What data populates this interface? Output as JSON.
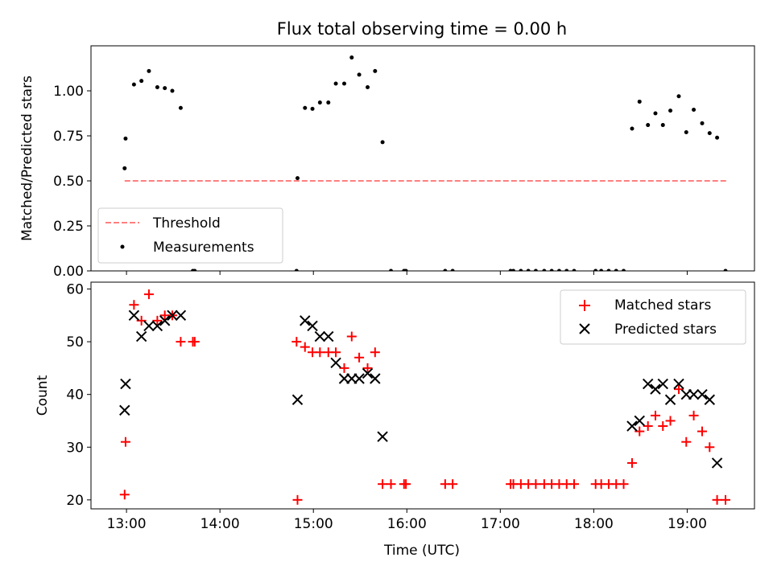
{
  "chart_data": [
    {
      "type": "scatter",
      "title": "Flux total observing time = 0.00 h",
      "xlabel": "",
      "ylabel": "Matched/Predicted stars",
      "xlim": [
        12.62,
        19.72
      ],
      "ylim": [
        0,
        1.25
      ],
      "yticks": [
        0.0,
        0.25,
        0.5,
        0.75,
        1.0
      ],
      "ytick_labels": [
        "0.00",
        "0.25",
        "0.50",
        "0.75",
        "1.00"
      ],
      "xticks": [
        13,
        14,
        15,
        16,
        17,
        18,
        19
      ],
      "show_xtick_labels": false,
      "legend": {
        "placement": "lower-left",
        "entries": [
          "Threshold",
          "Measurements"
        ]
      },
      "threshold": {
        "name": "Threshold",
        "y": 0.5,
        "x_range": [
          12.98,
          19.42
        ],
        "color": "#ff7f7f",
        "style": "dashed"
      },
      "series": [
        {
          "name": "Measurements",
          "marker": "dot",
          "color": "#000000",
          "points": [
            [
              12.98,
              0.57
            ],
            [
              12.99,
              0.735
            ],
            [
              13.08,
              1.035
            ],
            [
              13.16,
              1.055
            ],
            [
              13.24,
              1.11
            ],
            [
              13.33,
              1.02
            ],
            [
              13.41,
              1.015
            ],
            [
              13.49,
              1.0
            ],
            [
              13.58,
              0.905
            ],
            [
              13.71,
              0.0
            ],
            [
              13.73,
              0.0
            ],
            [
              14.82,
              0.0
            ],
            [
              14.83,
              0.515
            ],
            [
              14.91,
              0.905
            ],
            [
              14.99,
              0.9
            ],
            [
              15.07,
              0.935
            ],
            [
              15.16,
              0.935
            ],
            [
              15.24,
              1.04
            ],
            [
              15.33,
              1.04
            ],
            [
              15.41,
              1.185
            ],
            [
              15.49,
              1.09
            ],
            [
              15.58,
              1.02
            ],
            [
              15.66,
              1.11
            ],
            [
              15.74,
              0.715
            ],
            [
              15.83,
              0.0
            ],
            [
              15.97,
              0.0
            ],
            [
              15.99,
              0.0
            ],
            [
              16.41,
              0.0
            ],
            [
              16.49,
              0.0
            ],
            [
              17.11,
              0.0
            ],
            [
              17.14,
              0.0
            ],
            [
              17.22,
              0.0
            ],
            [
              17.3,
              0.0
            ],
            [
              17.38,
              0.0
            ],
            [
              17.47,
              0.0
            ],
            [
              17.55,
              0.0
            ],
            [
              17.63,
              0.0
            ],
            [
              17.71,
              0.0
            ],
            [
              17.79,
              0.0
            ],
            [
              18.02,
              0.0
            ],
            [
              18.08,
              0.0
            ],
            [
              18.16,
              0.0
            ],
            [
              18.24,
              0.0
            ],
            [
              18.32,
              0.0
            ],
            [
              18.41,
              0.79
            ],
            [
              18.49,
              0.94
            ],
            [
              18.58,
              0.81
            ],
            [
              18.66,
              0.875
            ],
            [
              18.74,
              0.81
            ],
            [
              18.82,
              0.89
            ],
            [
              18.91,
              0.97
            ],
            [
              18.99,
              0.77
            ],
            [
              19.07,
              0.895
            ],
            [
              19.16,
              0.82
            ],
            [
              19.24,
              0.765
            ],
            [
              19.32,
              0.74
            ],
            [
              19.41,
              0.0
            ]
          ]
        }
      ]
    },
    {
      "type": "scatter",
      "title": "",
      "xlabel": "Time (UTC)",
      "ylabel": "Count",
      "xlim": [
        12.62,
        19.72
      ],
      "ylim": [
        18.3,
        61.3
      ],
      "yticks": [
        20,
        30,
        40,
        50,
        60
      ],
      "ytick_labels": [
        "20",
        "30",
        "40",
        "50",
        "60"
      ],
      "xticks": [
        13,
        14,
        15,
        16,
        17,
        18,
        19
      ],
      "xtick_labels": [
        "13:00",
        "14:00",
        "15:00",
        "16:00",
        "17:00",
        "18:00",
        "19:00"
      ],
      "show_xtick_labels": true,
      "legend": {
        "placement": "top-right",
        "entries": [
          "Matched stars",
          "Predicted stars"
        ]
      },
      "series": [
        {
          "name": "Matched stars",
          "marker": "plus",
          "color": "#ff0000",
          "points": [
            [
              12.98,
              21
            ],
            [
              12.99,
              31
            ],
            [
              13.08,
              57
            ],
            [
              13.16,
              54
            ],
            [
              13.24,
              59
            ],
            [
              13.33,
              54
            ],
            [
              13.41,
              55
            ],
            [
              13.49,
              55
            ],
            [
              13.58,
              50
            ],
            [
              13.71,
              50
            ],
            [
              13.73,
              50
            ],
            [
              14.82,
              50
            ],
            [
              14.83,
              20
            ],
            [
              14.91,
              49
            ],
            [
              14.99,
              48
            ],
            [
              15.07,
              48
            ],
            [
              15.16,
              48
            ],
            [
              15.24,
              48
            ],
            [
              15.33,
              45
            ],
            [
              15.41,
              51
            ],
            [
              15.49,
              47
            ],
            [
              15.58,
              45
            ],
            [
              15.66,
              48
            ],
            [
              15.74,
              23
            ],
            [
              15.83,
              23
            ],
            [
              15.97,
              23
            ],
            [
              15.99,
              23
            ],
            [
              16.41,
              23
            ],
            [
              16.49,
              23
            ],
            [
              17.11,
              23
            ],
            [
              17.14,
              23
            ],
            [
              17.22,
              23
            ],
            [
              17.3,
              23
            ],
            [
              17.38,
              23
            ],
            [
              17.47,
              23
            ],
            [
              17.55,
              23
            ],
            [
              17.63,
              23
            ],
            [
              17.71,
              23
            ],
            [
              17.79,
              23
            ],
            [
              18.02,
              23
            ],
            [
              18.08,
              23
            ],
            [
              18.16,
              23
            ],
            [
              18.24,
              23
            ],
            [
              18.32,
              23
            ],
            [
              18.41,
              27
            ],
            [
              18.49,
              33
            ],
            [
              18.58,
              34
            ],
            [
              18.66,
              36
            ],
            [
              18.74,
              34
            ],
            [
              18.82,
              35
            ],
            [
              18.91,
              41
            ],
            [
              18.99,
              31
            ],
            [
              19.07,
              36
            ],
            [
              19.16,
              33
            ],
            [
              19.24,
              30
            ],
            [
              19.32,
              20
            ],
            [
              19.41,
              20
            ]
          ]
        },
        {
          "name": "Predicted stars",
          "marker": "x",
          "color": "#000000",
          "points": [
            [
              12.98,
              37
            ],
            [
              12.99,
              42
            ],
            [
              13.08,
              55
            ],
            [
              13.16,
              51
            ],
            [
              13.24,
              53
            ],
            [
              13.33,
              53
            ],
            [
              13.41,
              54
            ],
            [
              13.49,
              55
            ],
            [
              13.58,
              55
            ],
            [
              14.83,
              39
            ],
            [
              14.91,
              54
            ],
            [
              14.99,
              53
            ],
            [
              15.07,
              51
            ],
            [
              15.16,
              51
            ],
            [
              15.24,
              46
            ],
            [
              15.33,
              43
            ],
            [
              15.41,
              43
            ],
            [
              15.49,
              43
            ],
            [
              15.58,
              44
            ],
            [
              15.66,
              43
            ],
            [
              15.74,
              32
            ],
            [
              18.41,
              34
            ],
            [
              18.49,
              35
            ],
            [
              18.58,
              42
            ],
            [
              18.66,
              41
            ],
            [
              18.74,
              42
            ],
            [
              18.82,
              39
            ],
            [
              18.91,
              42
            ],
            [
              18.99,
              40
            ],
            [
              19.07,
              40
            ],
            [
              19.16,
              40
            ],
            [
              19.24,
              39
            ],
            [
              19.32,
              27
            ]
          ]
        }
      ]
    }
  ]
}
